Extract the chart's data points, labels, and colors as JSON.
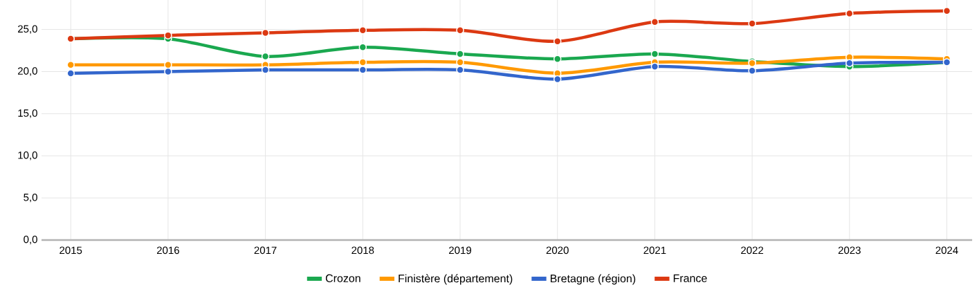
{
  "chart_data": {
    "type": "line",
    "x": [
      2015,
      2016,
      2017,
      2018,
      2019,
      2020,
      2021,
      2022,
      2023,
      2024
    ],
    "series": [
      {
        "name": "Crozon",
        "color": "#1aa84f",
        "values": [
          23.9,
          23.9,
          21.8,
          22.9,
          22.1,
          21.5,
          22.1,
          21.2,
          20.6,
          21.1
        ]
      },
      {
        "name": "Finistère (département)",
        "color": "#ff9900",
        "values": [
          20.8,
          20.8,
          20.8,
          21.1,
          21.1,
          19.8,
          21.1,
          21.0,
          21.7,
          21.5
        ]
      },
      {
        "name": "Bretagne (région)",
        "color": "#3366cc",
        "values": [
          19.8,
          20.0,
          20.2,
          20.2,
          20.2,
          19.1,
          20.6,
          20.1,
          21.0,
          21.1
        ]
      },
      {
        "name": "France",
        "color": "#dc3912",
        "values": [
          23.9,
          24.3,
          24.6,
          24.9,
          24.9,
          23.6,
          25.9,
          25.7,
          26.9,
          27.2
        ]
      }
    ],
    "xlim": [
      2014.7,
      2024.26
    ],
    "ylim": [
      0,
      28.5
    ],
    "xticks": [
      2015,
      2016,
      2017,
      2018,
      2019,
      2020,
      2021,
      2022,
      2023,
      2024
    ],
    "yticks": [
      {
        "value": 0,
        "label": "0,0"
      },
      {
        "value": 5,
        "label": "5,0"
      },
      {
        "value": 10,
        "label": "10,0"
      },
      {
        "value": 15,
        "label": "15,0"
      },
      {
        "value": 20,
        "label": "20,0"
      },
      {
        "value": 25,
        "label": "25,0"
      }
    ],
    "grid": true,
    "legend": "bottom",
    "marker": "circle",
    "line_style": "solid"
  }
}
